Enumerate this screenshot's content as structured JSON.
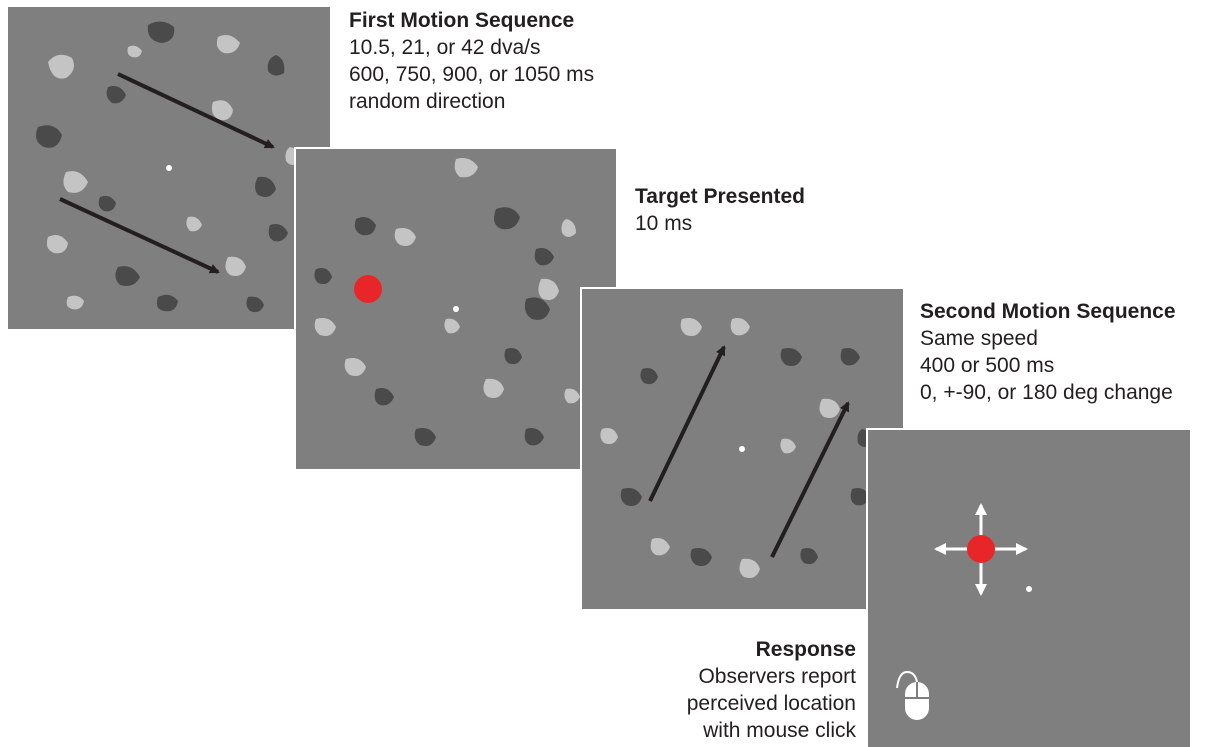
{
  "stages": [
    {
      "title": "First Motion Sequence",
      "lines": [
        "10.5, 21, or 42 dva/s",
        "600, 750, 900, or 1050 ms",
        "random direction"
      ]
    },
    {
      "title": "Target Presented",
      "lines": [
        "10 ms"
      ]
    },
    {
      "title": "Second Motion Sequence",
      "lines": [
        "Same speed",
        "400 or 500 ms",
        "0, +-90, or 180 deg change"
      ]
    },
    {
      "title": "Response",
      "lines": [
        "Observers report",
        "perceived location",
        "with mouse click"
      ]
    }
  ],
  "colors": {
    "background": "#7f7f7f",
    "patch_dark": "#4a4a4a",
    "patch_light": "#c4c4c4",
    "target": "#e8262a",
    "arrow": "#231f20",
    "fixation": "#ffffff"
  },
  "icons": [
    "motion-arrow-icon",
    "target-dot-icon",
    "fixation-dot-icon",
    "four-way-arrow-icon",
    "mouse-icon"
  ]
}
